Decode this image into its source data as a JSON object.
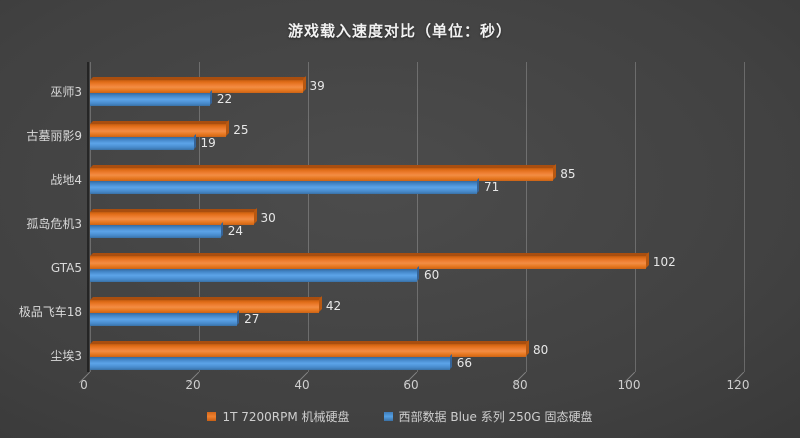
{
  "chart_data": {
    "type": "bar",
    "orientation": "horizontal",
    "title": "游戏载入速度对比（单位：秒）",
    "categories": [
      "巫师3",
      "古墓丽影9",
      "战地4",
      "孤岛危机3",
      "GTA5",
      "极品飞车18",
      "尘埃3"
    ],
    "series": [
      {
        "name": "1T 7200RPM 机械硬盘",
        "color": "#e8762c",
        "values": [
          39,
          25,
          85,
          30,
          102,
          42,
          80
        ]
      },
      {
        "name": "西部数据 Blue 系列 250G 固态硬盘",
        "color": "#4f96dc",
        "values": [
          22,
          19,
          71,
          24,
          60,
          27,
          66
        ]
      }
    ],
    "xlim": [
      0,
      120
    ],
    "x_ticks": [
      0,
      20,
      40,
      60,
      80,
      100,
      120
    ],
    "grid": "vertical-gridlines",
    "legend_position": "bottom",
    "value_labels": true,
    "style_3d": true
  },
  "colors": {
    "background_center": "#4c4c4c",
    "background_edge": "#282828",
    "gridline": "#6e6e6e",
    "title_text": "#f2f2f2",
    "label_text": "#d9d9d9",
    "hdd_orange": "#e8762c",
    "ssd_blue": "#4f96dc"
  }
}
